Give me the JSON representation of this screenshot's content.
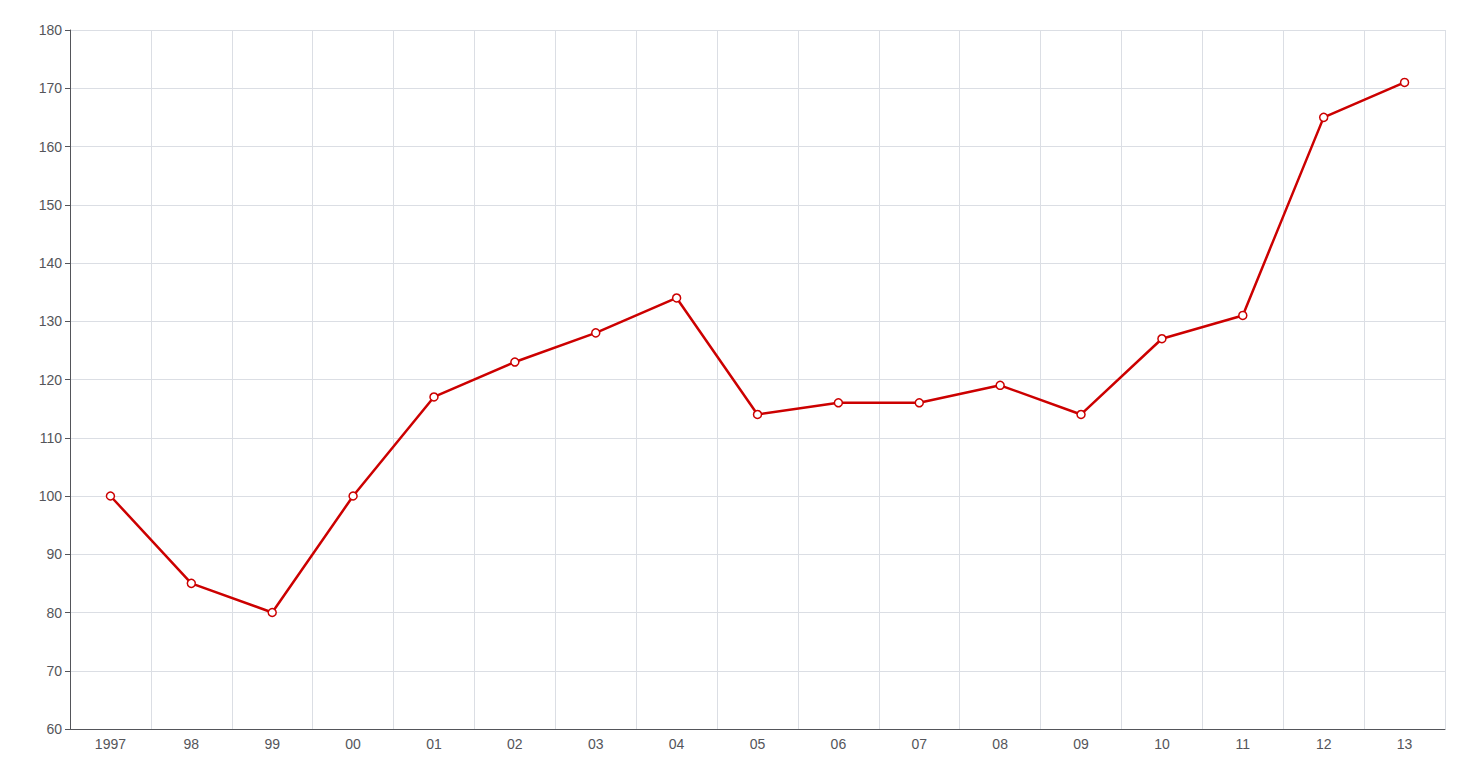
{
  "chart_data": {
    "type": "line",
    "categories": [
      "1997",
      "98",
      "99",
      "00",
      "01",
      "02",
      "03",
      "04",
      "05",
      "06",
      "07",
      "08",
      "09",
      "10",
      "11",
      "12",
      "13"
    ],
    "values": [
      100,
      85,
      80,
      100,
      117,
      123,
      128,
      134,
      114,
      116,
      116,
      119,
      114,
      127,
      131,
      165,
      171
    ],
    "color": "#cc0000",
    "marker": "circle",
    "ylim": [
      60,
      180
    ],
    "yticks": [
      60,
      70,
      80,
      90,
      100,
      110,
      120,
      130,
      140,
      150,
      160,
      170,
      180
    ],
    "grid": true
  }
}
